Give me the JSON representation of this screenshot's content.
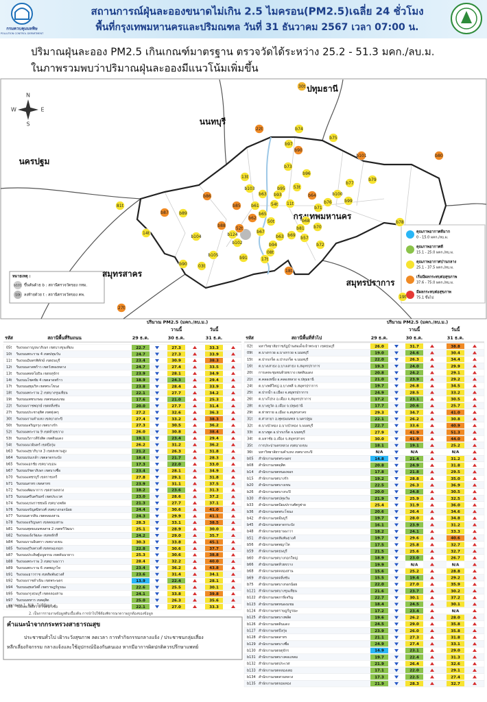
{
  "header": {
    "title": "สถานการณ์ฝุ่นละอองขนาดไม่เกิน 2.5 ไมครอน(PM2.5)เฉลี่ย 24 ชั่วโมง",
    "subtitle": "พื้นที่กรุงเทพมหานครและปริมณฑล วันที่ 31 ธันวาคม 2567 เวลา 07:00 น.",
    "logo_text": "กรมควบคุมมลพิษ",
    "logo_sub": "POLLUTION CONTROL DEPARTMENT"
  },
  "summary": [
    "ปริมาณฝุ่นละออง PM2.5 เกินเกณฑ์มาตรฐาน ตรวจวัดได้ระหว่าง 25.2 - 51.3 มคก./ลบ.ม.",
    "ในภาพรวมพบว่าปริมาณฝุ่นละอองมีแนวโน้มเพิ่มขึ้น"
  ],
  "map": {
    "regions": [
      "ปทุมธานี",
      "นนทบุรี",
      "นครปฐม",
      "กรุงเทพมหานคร",
      "สมุทรสาคร",
      "สมุทรปราการ"
    ],
    "compass": [
      "N",
      "E",
      "S",
      "W"
    ],
    "note_title": "หมายเหตุ :",
    "notes": [
      {
        "symbol": "b101",
        "text": "ขึ้นต้นด้วย b : สถานีตรวจวัดของ กทม."
      },
      {
        "symbol": "10t",
        "text": "ลงท้ายด้วย t : สถานีตรวจวัดของ คพ."
      }
    ],
    "stations": [
      {
        "label": "30t",
        "color": "#f2b630"
      },
      {
        "label": "22t",
        "color": "#f08a24"
      },
      {
        "label": "b74",
        "color": "#f7e32f"
      },
      {
        "label": "b75",
        "color": "#f7e32f"
      },
      {
        "label": "b97",
        "color": "#f7e32f"
      },
      {
        "label": "b90",
        "color": "#f08a24"
      },
      {
        "label": "b101",
        "color": "#f08a24"
      },
      {
        "label": "b80",
        "color": "#f08a24"
      },
      {
        "label": "81t",
        "color": "#f7e32f"
      },
      {
        "label": "13t",
        "color": "#f7e32f"
      },
      {
        "label": "b73",
        "color": "#f7e32f"
      },
      {
        "label": "b96",
        "color": "#f7e32f"
      },
      {
        "label": "b77",
        "color": "#f7e32f"
      },
      {
        "label": "b79",
        "color": "#f7e32f"
      },
      {
        "label": "b86",
        "color": "#f08a24"
      },
      {
        "label": "b103",
        "color": "#f7e32f"
      },
      {
        "label": "b95",
        "color": "#f7e32f"
      },
      {
        "label": "53t",
        "color": "#f7e32f"
      },
      {
        "label": "b63",
        "color": "#f7e32f"
      },
      {
        "label": "b93",
        "color": "#f7e32f"
      },
      {
        "label": "b64",
        "color": "#f08a24"
      },
      {
        "label": "b76",
        "color": "#f7e32f"
      },
      {
        "label": "b100",
        "color": "#f7e32f"
      },
      {
        "label": "b99",
        "color": "#f7e32f"
      },
      {
        "label": "b71",
        "color": "#f7e32f"
      },
      {
        "label": "b87",
        "color": "#f08a24"
      },
      {
        "label": "b89",
        "color": "#f7e32f"
      },
      {
        "label": "b85",
        "color": "#f08a24"
      },
      {
        "label": "b61",
        "color": "#f7e32f"
      },
      {
        "label": "54t",
        "color": "#f7e32f"
      },
      {
        "label": "11t",
        "color": "#f7e32f"
      },
      {
        "label": "b65",
        "color": "#f7e32f"
      },
      {
        "label": "b62",
        "color": "#f08a24"
      },
      {
        "label": "50t",
        "color": "#f7e32f"
      },
      {
        "label": "b68",
        "color": "#f7e32f"
      },
      {
        "label": "b88",
        "color": "#f08a24"
      },
      {
        "label": "52t",
        "color": "#f08a24"
      },
      {
        "label": "b81",
        "color": "#f7e32f"
      },
      {
        "label": "b70",
        "color": "#f7e32f"
      },
      {
        "label": "14t",
        "color": "#f7e32f"
      },
      {
        "label": "b104",
        "color": "#f7e32f"
      },
      {
        "label": "b124",
        "color": "#f7e32f"
      },
      {
        "label": "b67",
        "color": "#f7e32f"
      },
      {
        "label": "b69",
        "color": "#f7e32f"
      },
      {
        "label": "b57",
        "color": "#f7e32f"
      },
      {
        "label": "b102",
        "color": "#f7e32f"
      },
      {
        "label": "b94",
        "color": "#f7e32f"
      },
      {
        "label": "b72",
        "color": "#f7e32f"
      },
      {
        "label": "b105",
        "color": "#f7e32f"
      },
      {
        "label": "b91",
        "color": "#f7e32f"
      },
      {
        "label": "08t",
        "color": "#f7e32f"
      },
      {
        "label": "17t",
        "color": "#f7e32f"
      },
      {
        "label": "b90",
        "color": "#f7e32f"
      },
      {
        "label": "03t",
        "color": "#f7e32f"
      },
      {
        "label": "18t",
        "color": "#f08a24"
      },
      {
        "label": "b78",
        "color": "#f7e32f"
      },
      {
        "label": "19t",
        "color": "#f7e32f"
      },
      {
        "label": "27t",
        "color": "#f08a24"
      },
      {
        "label": "b63",
        "color": "#f7e32f"
      }
    ],
    "levels": [
      {
        "name": "คุณภาพอากาศดีมาก",
        "range": "0 - 15.0 มคก./ลบ.ม.",
        "color": "#29b6f6",
        "lower": 0
      },
      {
        "name": "คุณภาพอากาศดี",
        "range": "15.1 - 25.0 มคก./ลบ.ม.",
        "color": "#8bc34a",
        "lower": 15.1
      },
      {
        "name": "คุณภาพอากาศปานกลาง",
        "range": "25.1 - 37.5 มคก./ลบ.ม.",
        "color": "#f7e32f",
        "lower": 25.1
      },
      {
        "name": "เริ่มมีผลกระทบต่อสุขภาพ",
        "range": "37.6 - 75.0 มคก./ลบ.ม.",
        "color": "#f08a24",
        "lower": 37.6
      },
      {
        "name": "มีผลกระทบต่อสุขภาพ",
        "range": "75.1 ขึ้นไป",
        "color": "#e53935",
        "lower": 75.1
      }
    ]
  },
  "tables": [
    {
      "unit": "ปริมาณ PM2.5 (มคก./ลบ.ม.)",
      "yesterday": "วานนี้",
      "today": "วันนี้",
      "code_header": "รหัส",
      "name_header": "สถานีพื้นที่ริมถนน",
      "dates": [
        "29 ธ.ค.",
        "30 ธ.ค.",
        "31 ธ.ค."
      ],
      "rows": [
        [
          "05t",
          "ริมถนนกาญจนาภิเษก เขตบางขุนเทียน",
          "22.7",
          "27.3",
          "33.3"
        ],
        [
          "10t",
          "ริมถนนพระราม 4 เขตปทุมวัน",
          "24.7",
          "27.3",
          "33.9"
        ],
        [
          "11t",
          "ริมถนนอินทรพิทักษ์ เขตธนบุรี",
          "23.4",
          "30.9",
          "38.3"
        ],
        [
          "12t",
          "ริมถนนลาดพร้าว เขตวังทองหลาง",
          "24.7",
          "27.4",
          "33.5"
        ],
        [
          "13t",
          "ริมถนนพหลโยธิน เขตจตุจักร",
          "23.9",
          "28.1",
          "34.9"
        ],
        [
          "14t",
          "ริมถนนโชคชัย 4 เขตลาดพร้าว",
          "18.9",
          "24.3",
          "29.4"
        ],
        [
          "17t",
          "ริมถนนสุขุมวิท เขตพระโขนง",
          "23.8",
          "28.4",
          "33.9"
        ],
        [
          "18t",
          "ริมถนนพระราม 2 เขตบางขุนเทียน",
          "22.1",
          "27.7",
          "34.2"
        ],
        [
          "19t",
          "ริมถนนเพชรเกษม เขตหนองแขม",
          "17.6",
          "21.0",
          "25.3"
        ],
        [
          "22t",
          "ริมถนนราชพฤกษ์ เขตตลิ่งชัน",
          "20.0",
          "27.7",
          "31.4"
        ],
        [
          "27t",
          "ริมถนนประชาอุทิศ เขตทุ่งครุ",
          "27.2",
          "32.6",
          "36.3"
        ],
        [
          "30t",
          "ริมถนนรามคำแหง เขตบางกะปิ",
          "27.4",
          "33.2",
          "38.3"
        ],
        [
          "50t",
          "ริมถนนเจริญกรุง เขตบางรัก",
          "27.3",
          "30.5",
          "36.2"
        ],
        [
          "52t",
          "ริมถนนพระราม 9 เขตห้วยขวาง",
          "26.0",
          "30.8",
          "38.4"
        ],
        [
          "53t",
          "ริมถนนวิภาวดีรังสิต เขตดินแดง",
          "19.1",
          "23.4",
          "29.4"
        ],
        [
          "54t",
          "ริมถนนนวมินทร์ เขตบึงกุ่ม",
          "26.2",
          "31.2",
          "36.2"
        ],
        [
          "b63",
          "ริมถนนสุขาภิบาล 3 เขตสะพานสูง",
          "21.2",
          "26.3",
          "31.8"
        ],
        [
          "b64",
          "ริมถนนร่มเกล้า เขตลาดกระบัง",
          "18.4",
          "21.7",
          "28.3"
        ],
        [
          "b65",
          "ริมถนนเอกชัย เขตบางบอน",
          "17.3",
          "22.0",
          "33.0"
        ],
        [
          "b67",
          "ริมถนนรัชดาภิเษก เขตบางซื่อ",
          "23.4",
          "28.1",
          "34.9"
        ],
        [
          "b70",
          "ริมถนนเพชรบุรี เขตราชเทวี",
          "27.8",
          "29.1",
          "31.8"
        ],
        [
          "b71",
          "ริมถนนสาทร เขตสาทร",
          "23.9",
          "31.1",
          "37.5"
        ],
        [
          "b72",
          "ริมถนนพัฒนาการ เขตสวนหลวง",
          "18.2",
          "23.6",
          "31.3"
        ],
        [
          "b73",
          "ริมถนนศรีนครินทร์ เขตประเวศ",
          "23.0",
          "28.6",
          "37.2"
        ],
        [
          "b74",
          "ริมถนนบรมราชชนนี เขตบางพลัด",
          "21.3",
          "27.7",
          "37.1"
        ],
        [
          "b76",
          "ริมถนนจรัญสนิทวงศ์ เขตบางกอกน้อย",
          "24.4",
          "30.6",
          "41.0"
        ],
        [
          "b77",
          "ริมถนนตากสิน เขตคลองสาน",
          "24.3",
          "29.9",
          "41.1"
        ],
        [
          "b78",
          "ริมถนนเจริญนคร เขตคลองสาน",
          "28.3",
          "33.1",
          "38.5"
        ],
        [
          "b81",
          "ริมถนนพุทธมณฑลสาย 2 เขตทวีวัฒนา",
          "25.1",
          "28.9",
          "30.0"
        ],
        [
          "b82",
          "ริมถนนแจ้งวัฒนะ เขตหลักสี่",
          "24.2",
          "29.0",
          "35.7"
        ],
        [
          "b84",
          "ริมถนนรามอินทรา เขตบางเขน",
          "30.3",
          "33.8",
          "45.1"
        ],
        [
          "b85",
          "ริมถนนสุวินทวงศ์ เขตหนองจอก",
          "22.8",
          "30.6",
          "37.7"
        ],
        [
          "b87",
          "ริมถนนประดิษฐ์มนูธรรม เขตคันนายาว",
          "25.3",
          "30.6",
          "38.8"
        ],
        [
          "b88",
          "ริมถนนพระราม 3 เขตยานนาวา",
          "28.4",
          "32.2",
          "40.0"
        ],
        [
          "b89",
          "ริมถนนพระราม 6 เขตพญาไท",
          "23.4",
          "36.2",
          "43.8"
        ],
        [
          "b91",
          "ริมถนนเยาวราช เขตสัมพันธวงศ์",
          "23.6",
          "31.4",
          "34.1"
        ],
        [
          "b92",
          "ริมถนนราชดำเนิน เขตพระนคร",
          "13.9",
          "22.4",
          "28.1"
        ],
        [
          "b94",
          "ริมถนนสุขสวัสดิ์ เขตราษฎร์บูรณะ",
          "22.6",
          "25.5",
          "30.1"
        ],
        [
          "b95",
          "ริมถนนกรุงธนบุรี เขตคลองสาน",
          "24.1",
          "33.8",
          "39.8"
        ],
        [
          "b97",
          "ริมถนนทหาร เขตดุสิต",
          "25.0",
          "26.3",
          "35.6"
        ],
        [
          "b98",
          "ริมถนนวงศ์สว่าง เขตบางซื่อ",
          "22.1",
          "27.0",
          "33.3"
        ]
      ]
    },
    {
      "unit": "ปริมาณ PM2.5 (มคก./ลบ.ม.)",
      "yesterday": "วานนี้",
      "today": "วันนี้",
      "code_header": "รหัส",
      "name_header": "สถานีพื้นที่ทั่วไป",
      "dates": [
        "29 ธ.ค.",
        "30 ธ.ค.",
        "31 ธ.ค."
      ],
      "rows": [
        [
          "02t",
          "มหาวิทยาลัยราชภัฏบ้านสมเด็จเจ้าพระยา เขตธนบุรี",
          "26.0",
          "31.7",
          "38.8"
        ],
        [
          "09t",
          "ต.บางกรวย อ.บางกรวย จ.นนทบุรี",
          "19.0",
          "24.6",
          "30.4"
        ],
        [
          "15t",
          "ต.ปากเกร็ด อ.ปากเกร็ด จ.นนทบุรี",
          "22.0",
          "26.3",
          "34.4"
        ],
        [
          "16t",
          "ต.บางเสาธง อ.บางเสาธง จ.สมุทรปราการ",
          "19.3",
          "24.0",
          "29.9"
        ],
        [
          "20t",
          "การเคหะชุมชนห้วยขวาง เขตดินแดง",
          "20.8",
          "24.2",
          "29.1"
        ],
        [
          "21t",
          "ต.คลองหนึ่ง อ.คลองหลวง จ.ปทุมธานี",
          "21.0",
          "23.9",
          "29.2"
        ],
        [
          "24t",
          "ต.บางพลีใหญ่ อ.บางพลี จ.สมุทรปราการ",
          "19.7",
          "26.8",
          "34.5"
        ],
        [
          "25t",
          "ต.ปากน้ำ อ.เมือง จ.สมุทรปราการ",
          "24.9",
          "28.5",
          "33.2"
        ],
        [
          "26t",
          "ต.บางโปรง อ.เมือง จ.สมุทรปราการ",
          "17.2",
          "23.1",
          "30.5"
        ],
        [
          "28t",
          "ต.บางคูวัด อ.เมือง จ.ปทุมธานี",
          "17.7",
          "20.6",
          "25.7"
        ],
        [
          "29t",
          "ต.ท่าทราย อ.เมือง จ.สมุทรสาคร",
          "29.3",
          "34.7",
          "41.0"
        ],
        [
          "31t",
          "ต.ศาลายา อ.พุทธมณฑล จ.นครปฐม",
          "22.1",
          "26.2",
          "30.8"
        ],
        [
          "32t",
          "ต.บางบัวทอง อ.บางบัวทอง จ.นนทบุรี",
          "22.7",
          "33.6",
          "40.9"
        ],
        [
          "33t",
          "ต.บางพูด อ.ปากเกร็ด จ.นนทบุรี",
          "27.9",
          "41.9",
          "51.3"
        ],
        [
          "34t",
          "ต.มหาชัย อ.เมือง จ.สมุทรสาคร",
          "30.0",
          "41.9",
          "44.0"
        ],
        [
          "35t",
          "การประปานครหลวง เขตบางเขน",
          "18.1",
          "19.1",
          "25.2"
        ],
        [
          "36t",
          "มหาวิทยาลัยรามคำแหง เขตบางกะปิ",
          "N/A",
          "N/A",
          "N/A"
        ],
        [
          "b05",
          "สำนักงานเขตพระนคร",
          "14.8",
          "21.4",
          "31.2"
        ],
        [
          "b08",
          "สำนักงานเขตดุสิต",
          "20.8",
          "24.9",
          "31.8"
        ],
        [
          "b14",
          "สำนักงานเขตหนองจอก",
          "17.8",
          "21.8",
          "29.5"
        ],
        [
          "b15",
          "สำนักงานเขตบางรัก",
          "19.2",
          "28.8",
          "35.0"
        ],
        [
          "b20",
          "สำนักงานเขตบางเขน",
          "22.5",
          "26.3",
          "36.9"
        ],
        [
          "b26",
          "สำนักงานเขตบางกะปิ",
          "20.0",
          "24.8",
          "30.5"
        ],
        [
          "b30",
          "สำนักงานเขตปทุมวัน",
          "21.9",
          "25.9",
          "32.5"
        ],
        [
          "b33",
          "สำนักงานเขตป้อมปราบศัตรูพ่าย",
          "25.4",
          "31.9",
          "36.0"
        ],
        [
          "b36",
          "สำนักงานเขตพระโขนง",
          "20.6",
          "26.4",
          "34.6"
        ],
        [
          "b42",
          "สำนักงานเขตมีนบุรี",
          "19.7",
          "28.0",
          "34.8"
        ],
        [
          "b45",
          "สำนักงานเขตลาดกระบัง",
          "16.1",
          "23.9",
          "31.2"
        ],
        [
          "b48",
          "สำนักงานเขตยานนาวา",
          "18.2",
          "24.1",
          "33.3"
        ],
        [
          "b51",
          "สำนักงานเขตสัมพันธวงศ์",
          "19.7",
          "29.6",
          "40.6"
        ],
        [
          "b56",
          "สำนักงานเขตพญาไท",
          "17.5",
          "25.8",
          "32.7"
        ],
        [
          "b59",
          "สำนักงานเขตธนบุรี",
          "21.5",
          "25.6",
          "32.7"
        ],
        [
          "b60",
          "สำนักงานเขตบางกอกใหญ่",
          "18.9",
          "23.0",
          "26.7"
        ],
        [
          "b66",
          "สำนักงานเขตห้วยขวาง",
          "19.9",
          "N/A",
          "N/A"
        ],
        [
          "b68",
          "สำนักงานเขตคลองสาน",
          "15.6",
          "25.2",
          "28.8"
        ],
        [
          "b69",
          "สำนักงานเขตตลิ่งชัน",
          "15.5",
          "19.4",
          "29.2"
        ],
        [
          "b75",
          "สำนักงานเขตบางกอกน้อย",
          "22.0",
          "27.0",
          "35.9"
        ],
        [
          "b121",
          "สำนักงานเขตบางขุนเทียน",
          "21.6",
          "23.7",
          "30.2"
        ],
        [
          "b122",
          "สำนักงานเขตภาษีเจริญ",
          "22.7",
          "30.1",
          "37.2"
        ],
        [
          "b123",
          "สำนักงานเขตหนองแขม",
          "18.4",
          "24.5",
          "30.1"
        ],
        [
          "b124",
          "สำนักงานเขตราษฎร์บูรณะ",
          "17.2",
          "23.4",
          "N/A"
        ],
        [
          "b125",
          "สำนักงานเขตบางพลัด",
          "19.6",
          "26.2",
          "28.0"
        ],
        [
          "b126",
          "สำนักงานเขตดินแดง",
          "24.5",
          "29.0",
          "35.8"
        ],
        [
          "b127",
          "สำนักงานเขตบึงกุ่ม",
          "23.9",
          "26.0",
          "35.8"
        ],
        [
          "b128",
          "สำนักงานเขตสาทร",
          "21.1",
          "27.3",
          "31.8"
        ],
        [
          "b129",
          "สำนักงานเขตบางซื่อ",
          "24.9",
          "27.4",
          "33.1"
        ],
        [
          "b130",
          "สำนักงานเขตจตุจักร",
          "14.9",
          "23.1",
          "29.0"
        ],
        [
          "b131",
          "สำนักงานเขตบางคอแหลม",
          "19.7",
          "22.4",
          "31.3"
        ],
        [
          "b132",
          "สำนักงานเขตประเวศ",
          "21.9",
          "26.4",
          "32.6"
        ],
        [
          "b133",
          "สำนักงานเขตคลองเตย",
          "17.1",
          "22.0",
          "29.1"
        ],
        [
          "b134",
          "สำนักงานเขตสวนหลวง",
          "17.3",
          "22.5",
          "27.4"
        ],
        [
          "b135",
          "สำนักงานเขตจอมทอง",
          "21.9",
          "28.3",
          "32.7"
        ]
      ]
    }
  ],
  "footnotes": [
    "หมายเหตุ 1. N/A : ไม่มีข้อมูล",
    "2. เป็นการรายงานข้อมูลดิบเบื้องต้น การนำไปใช้ต้องพิจารณาความถูกต้องของข้อมูล"
  ],
  "advice": {
    "title": "คำแนะนำจากกระทรวงสาธารณสุข",
    "lines": [
      "ประชาชนทั่วไป เฝ้าระวังสุขภาพ ลดเวลา การทำกิจกรรมกลางแจ้ง / ประชาชนกลุ่มเสี่ยง",
      "หลีกเลี่ยงกิจกรรม กลางแจ้งและใช้อุปกรณ์ป้องกันตนเอง หากมีอาการผิดปกติควรปรึกษาแพทย์"
    ]
  }
}
